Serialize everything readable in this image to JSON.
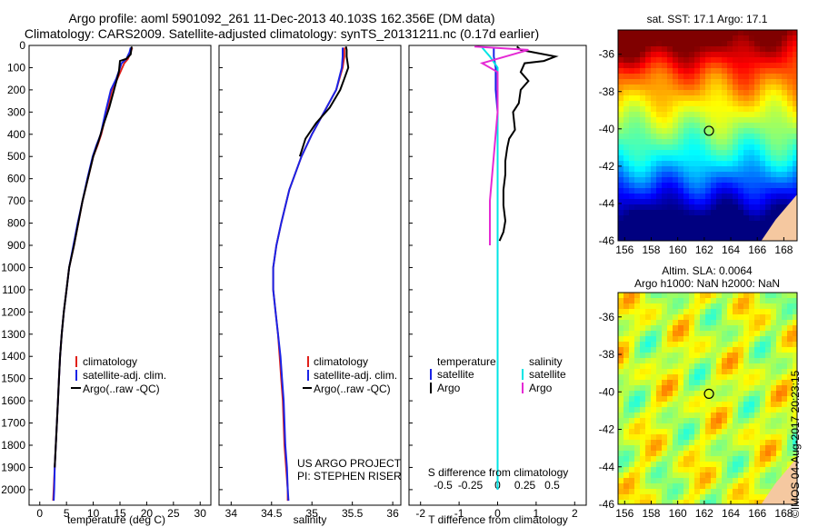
{
  "header": {
    "title_line1": "Argo profile: aoml 5901092_261 11-Dec-2013 40.103S 162.356E (DM data)",
    "title_line2": "Climatology: CARS2009. Satellite-adjusted climatology: synTS_20131211.nc (0.17d earlier)"
  },
  "footer": {
    "project_line1": "US ARGO PROJECT",
    "project_line2": "PI: STEPHEN RISER",
    "stamp": "©IMOS 04-Aug-2017 20:23:15"
  },
  "legend_ts": [
    "climatology",
    "satellite-adj. clim.",
    "Argo(..raw -QC)"
  ],
  "legend_diff": {
    "temperature_head": "temperature",
    "salinity_head": "salinity",
    "t_satellite": "satellite",
    "t_argo": "Argo",
    "s_satellite": "satellite",
    "s_argo": "Argo"
  },
  "maps": {
    "sst": {
      "title": "sat. SST: 17.1  Argo: 17.1",
      "x_ticks": [
        "156",
        "158",
        "160",
        "162",
        "164",
        "166",
        "168"
      ],
      "y_ticks": [
        "-36",
        "-38",
        "-40",
        "-42",
        "-44",
        "-46"
      ]
    },
    "sla": {
      "title_line1": "Altim. SLA: 0.0064",
      "title_line2": "Argo h1000: NaN h2000: NaN",
      "x_ticks": [
        "156",
        "158",
        "160",
        "162",
        "164",
        "166",
        "168"
      ],
      "y_ticks": [
        "-36",
        "-38",
        "-40",
        "-42",
        "-44",
        "-46"
      ]
    },
    "float_lon": 162.356,
    "float_lat": -40.103
  },
  "colors": {
    "climatology": "#e0201a",
    "satellite": "#1a23e6",
    "argo": "#000000",
    "salinity_satellite": "#00e5e5",
    "salinity_argo": "#e52ad4",
    "land": "#f5c8a0"
  },
  "chart_data": [
    {
      "type": "line",
      "panel": "temperature",
      "xlabel": "temperature (deg C)",
      "ylabel": "",
      "xlim": [
        -2,
        32
      ],
      "ylim": [
        2070,
        0
      ],
      "x_ticks": [
        0,
        5,
        10,
        15,
        20,
        25,
        30
      ],
      "y_ticks": [
        0,
        100,
        200,
        300,
        400,
        500,
        600,
        700,
        800,
        900,
        1000,
        1100,
        1200,
        1300,
        1400,
        1500,
        1600,
        1700,
        1800,
        1900,
        2000
      ],
      "series": [
        {
          "name": "climatology",
          "points": [
            [
              17.3,
              10
            ],
            [
              17.0,
              30
            ],
            [
              16.5,
              60
            ],
            [
              15.8,
              80
            ],
            [
              14.5,
              150
            ],
            [
              13.5,
              200
            ],
            [
              12.5,
              300
            ],
            [
              11.5,
              400
            ],
            [
              10.8,
              450
            ],
            [
              10.0,
              500
            ],
            [
              9.0,
              600
            ],
            [
              8.0,
              700
            ],
            [
              7.2,
              800
            ],
            [
              6.4,
              900
            ],
            [
              5.5,
              1000
            ],
            [
              5.0,
              1100
            ],
            [
              4.5,
              1200
            ],
            [
              4.1,
              1300
            ],
            [
              3.8,
              1400
            ],
            [
              3.6,
              1500
            ],
            [
              3.4,
              1600
            ],
            [
              3.2,
              1700
            ],
            [
              3.0,
              1800
            ],
            [
              2.8,
              1900
            ],
            [
              2.6,
              2000
            ],
            [
              2.5,
              2050
            ]
          ]
        },
        {
          "name": "satellite-adj. clim.",
          "points": [
            [
              17.0,
              10
            ],
            [
              16.8,
              30
            ],
            [
              16.2,
              60
            ],
            [
              15.3,
              80
            ],
            [
              14.3,
              150
            ],
            [
              13.3,
              200
            ],
            [
              12.3,
              300
            ],
            [
              11.4,
              400
            ],
            [
              10.6,
              450
            ],
            [
              9.9,
              500
            ],
            [
              8.9,
              600
            ],
            [
              8.0,
              700
            ],
            [
              7.1,
              800
            ],
            [
              6.3,
              900
            ],
            [
              5.5,
              1000
            ],
            [
              5.0,
              1100
            ],
            [
              4.5,
              1200
            ],
            [
              4.1,
              1300
            ],
            [
              3.8,
              1400
            ],
            [
              3.6,
              1500
            ],
            [
              3.4,
              1600
            ],
            [
              3.2,
              1700
            ],
            [
              3.0,
              1800
            ],
            [
              2.8,
              1900
            ],
            [
              2.7,
              2000
            ],
            [
              2.6,
              2050
            ]
          ]
        },
        {
          "name": "Argo(..raw -QC)",
          "points": [
            [
              17.2,
              5
            ],
            [
              17.1,
              20
            ],
            [
              17.0,
              40
            ],
            [
              16.2,
              60
            ],
            [
              15.0,
              70
            ],
            [
              14.8,
              120
            ],
            [
              13.9,
              200
            ],
            [
              13.0,
              280
            ],
            [
              12.0,
              350
            ],
            [
              11.0,
              430
            ],
            [
              10.0,
              500
            ],
            [
              9.0,
              600
            ],
            [
              8.0,
              700
            ],
            [
              7.2,
              800
            ],
            [
              6.4,
              900
            ],
            [
              5.5,
              1000
            ],
            [
              5.0,
              1100
            ],
            [
              4.5,
              1200
            ],
            [
              4.1,
              1300
            ],
            [
              3.8,
              1400
            ],
            [
              3.6,
              1500
            ],
            [
              3.4,
              1600
            ],
            [
              3.2,
              1700
            ],
            [
              3.0,
              1800
            ],
            [
              2.8,
              1900
            ]
          ]
        }
      ]
    },
    {
      "type": "line",
      "panel": "salinity",
      "xlabel": "salinity",
      "ylabel": "",
      "xlim": [
        33.85,
        36.1
      ],
      "ylim": [
        2070,
        0
      ],
      "x_ticks": [
        34,
        34.5,
        35,
        35.5,
        36
      ],
      "series": [
        {
          "name": "climatology",
          "points": [
            [
              35.4,
              10
            ],
            [
              35.4,
              50
            ],
            [
              35.38,
              100
            ],
            [
              35.3,
              200
            ],
            [
              35.15,
              300
            ],
            [
              35.0,
              400
            ],
            [
              34.87,
              500
            ],
            [
              34.72,
              650
            ],
            [
              34.62,
              800
            ],
            [
              34.56,
              900
            ],
            [
              34.52,
              1000
            ],
            [
              34.52,
              1100
            ],
            [
              34.55,
              1200
            ],
            [
              34.58,
              1300
            ],
            [
              34.6,
              1400
            ],
            [
              34.62,
              1500
            ],
            [
              34.64,
              1600
            ],
            [
              34.65,
              1700
            ],
            [
              34.66,
              1800
            ],
            [
              34.68,
              1900
            ],
            [
              34.7,
              2000
            ],
            [
              34.7,
              2050
            ]
          ]
        },
        {
          "name": "satellite-adj. clim.",
          "points": [
            [
              35.38,
              10
            ],
            [
              35.38,
              50
            ],
            [
              35.37,
              100
            ],
            [
              35.3,
              200
            ],
            [
              35.15,
              300
            ],
            [
              35.0,
              400
            ],
            [
              34.87,
              500
            ],
            [
              34.72,
              650
            ],
            [
              34.62,
              800
            ],
            [
              34.56,
              900
            ],
            [
              34.52,
              1000
            ],
            [
              34.52,
              1100
            ],
            [
              34.55,
              1200
            ],
            [
              34.58,
              1300
            ],
            [
              34.61,
              1400
            ],
            [
              34.63,
              1500
            ],
            [
              34.65,
              1600
            ],
            [
              34.66,
              1700
            ],
            [
              34.67,
              1800
            ],
            [
              34.69,
              1900
            ],
            [
              34.7,
              2000
            ],
            [
              34.71,
              2050
            ]
          ]
        },
        {
          "name": "Argo(..raw -QC)",
          "points": [
            [
              35.42,
              5
            ],
            [
              35.43,
              20
            ],
            [
              35.43,
              50
            ],
            [
              35.45,
              100
            ],
            [
              35.4,
              150
            ],
            [
              35.35,
              200
            ],
            [
              35.22,
              280
            ],
            [
              35.05,
              350
            ],
            [
              34.92,
              420
            ],
            [
              34.85,
              500
            ]
          ]
        }
      ]
    },
    {
      "type": "line",
      "panel": "difference",
      "xlabel": "T difference from climatology",
      "xlabel_top": "S difference from climatology",
      "xlim": [
        -2.3,
        2.3
      ],
      "ylim": [
        2070,
        0
      ],
      "x_ticks_t": [
        -2,
        -1,
        0,
        1,
        2
      ],
      "x_ticks_s": [
        -0.5,
        -0.25,
        0,
        0.25,
        0.5
      ],
      "series": [
        {
          "name": "T satellite",
          "points": [
            [
              -0.1,
              10
            ],
            [
              -0.1,
              50
            ],
            [
              -0.05,
              100
            ],
            [
              -0.05,
              200
            ],
            [
              0,
              300
            ],
            [
              0,
              400
            ],
            [
              0,
              600
            ],
            [
              0,
              800
            ],
            [
              0,
              1000
            ],
            [
              0,
              1200
            ],
            [
              0,
              1500
            ],
            [
              0,
              1800
            ],
            [
              0,
              2000
            ]
          ]
        },
        {
          "name": "T Argo",
          "points": [
            [
              0.5,
              5
            ],
            [
              0.6,
              20
            ],
            [
              1.5,
              50
            ],
            [
              1.2,
              70
            ],
            [
              0.7,
              80
            ],
            [
              0.6,
              120
            ],
            [
              0.8,
              160
            ],
            [
              0.6,
              200
            ],
            [
              0.55,
              260
            ],
            [
              0.4,
              300
            ],
            [
              0.45,
              380
            ],
            [
              0.3,
              420
            ],
            [
              0.25,
              460
            ],
            [
              0.2,
              520
            ],
            [
              0.2,
              580
            ],
            [
              0.15,
              650
            ],
            [
              0.15,
              720
            ],
            [
              0.2,
              790
            ],
            [
              0.15,
              840
            ],
            [
              0.05,
              880
            ]
          ]
        },
        {
          "name": "S satellite",
          "points": [
            [
              -0.1,
              10
            ],
            [
              -0.05,
              50
            ],
            [
              0,
              100
            ],
            [
              0,
              300
            ],
            [
              0,
              600
            ],
            [
              0,
              1000
            ],
            [
              0,
              1500
            ],
            [
              0,
              2000
            ]
          ]
        },
        {
          "name": "S Argo",
          "points": [
            [
              -0.15,
              5
            ],
            [
              0.2,
              20
            ],
            [
              0.1,
              40
            ],
            [
              -0.1,
              80
            ],
            [
              0,
              120
            ],
            [
              0,
              300
            ],
            [
              -0.05,
              700
            ],
            [
              -0.05,
              900
            ]
          ]
        }
      ]
    }
  ]
}
